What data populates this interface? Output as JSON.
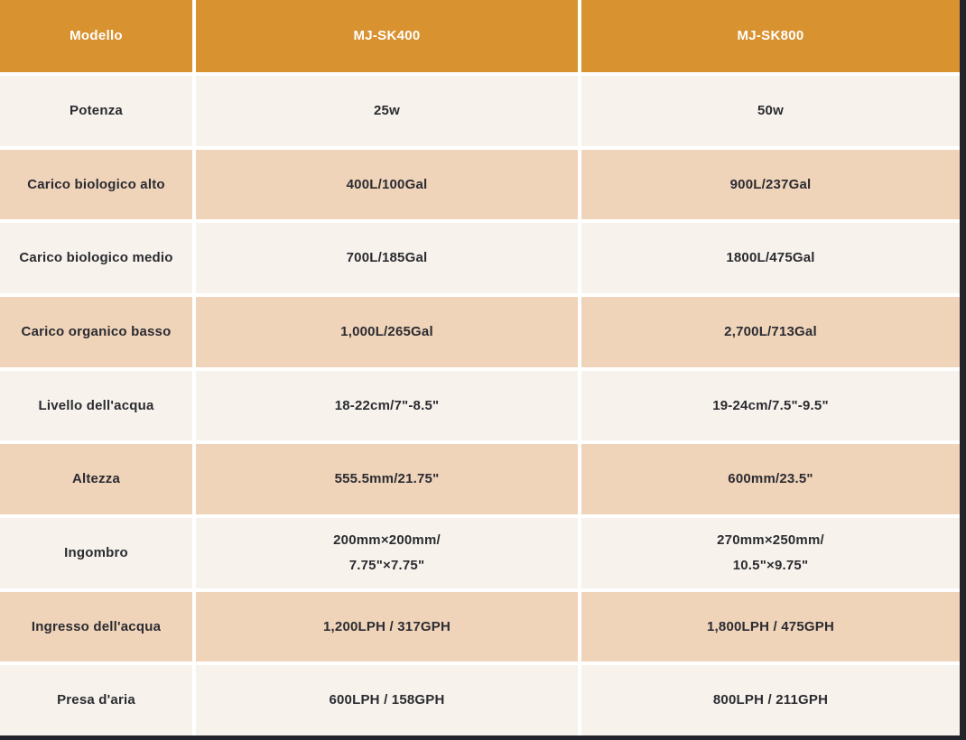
{
  "colors": {
    "header_bg": "#d99230",
    "row_light_bg": "#f7f3ec",
    "row_peach_bg": "#f0d4ba",
    "header_text": "#ffffff",
    "cell_text": "#2b2b31",
    "separator": "#ffffff",
    "frame_border": "#23232b"
  },
  "table": {
    "columns": [
      "Modello",
      "MJ-SK400",
      "MJ-SK800"
    ],
    "rows": [
      {
        "label": "Potenza",
        "sk400": "25w",
        "sk800": "50w"
      },
      {
        "label": "Carico biologico alto",
        "sk400": "400L/100Gal",
        "sk800": "900L/237Gal"
      },
      {
        "label": "Carico biologico medio",
        "sk400": "700L/185Gal",
        "sk800": "1800L/475Gal"
      },
      {
        "label": "Carico organico basso",
        "sk400": "1,000L/265Gal",
        "sk800": "2,700L/713Gal"
      },
      {
        "label": "Livello dell'acqua",
        "sk400": "18-22cm/7\"-8.5\"",
        "sk800": "19-24cm/7.5\"-9.5\""
      },
      {
        "label": "Altezza",
        "sk400": "555.5mm/21.75\"",
        "sk800": "600mm/23.5\""
      },
      {
        "label": "Ingombro",
        "sk400": "200mm×200mm/\n7.75\"×7.75\"",
        "sk800": "270mm×250mm/\n10.5\"×9.75\""
      },
      {
        "label": "Ingresso dell'acqua",
        "sk400": "1,200LPH / 317GPH",
        "sk800": "1,800LPH / 475GPH"
      },
      {
        "label": "Presa d'aria",
        "sk400": "600LPH / 158GPH",
        "sk800": "800LPH / 211GPH"
      }
    ]
  }
}
